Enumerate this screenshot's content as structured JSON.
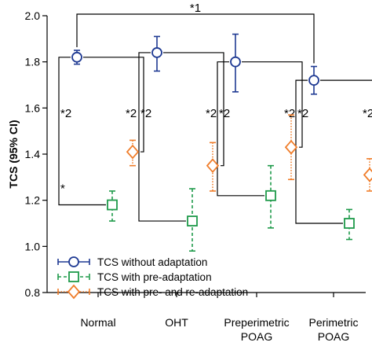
{
  "chart_data": {
    "type": "scatter",
    "ylabel": "TCS (95% CI)",
    "xlabel": "",
    "ylim": [
      0.8,
      2.0
    ],
    "yticks": [
      0.8,
      1.0,
      1.2,
      1.4,
      1.6,
      1.8,
      2.0
    ],
    "categories": [
      {
        "line1": "Normal",
        "line2": ""
      },
      {
        "line1": "OHT",
        "line2": ""
      },
      {
        "line1": "Preperimetric",
        "line2": "POAG"
      },
      {
        "line1": "Perimetric",
        "line2": "POAG"
      }
    ],
    "series": [
      {
        "name": "TCS without adaptation",
        "color": "#1f3a93",
        "marker": "circle",
        "line": "solid",
        "values": [
          1.82,
          1.84,
          1.8,
          1.72
        ],
        "ci_low": [
          1.79,
          1.76,
          1.67,
          1.66
        ],
        "ci_high": [
          1.85,
          1.91,
          1.92,
          1.78
        ]
      },
      {
        "name": "TCS with pre-adaptation",
        "color": "#1e9a4a",
        "marker": "square",
        "line": "dashed",
        "values": [
          1.18,
          1.11,
          1.22,
          1.1
        ],
        "ci_low": [
          1.11,
          0.98,
          1.08,
          1.03
        ],
        "ci_high": [
          1.24,
          1.25,
          1.35,
          1.16
        ]
      },
      {
        "name": "TCS with pre- and re-adaptation",
        "color": "#f07d2a",
        "marker": "diamond",
        "line": "dotted",
        "values": [
          1.41,
          1.35,
          1.43,
          1.31
        ],
        "ci_low": [
          1.35,
          1.24,
          1.29,
          1.24
        ],
        "ci_high": [
          1.46,
          1.45,
          1.57,
          1.38
        ]
      }
    ],
    "annotations": {
      "top": "*1",
      "pairwise": "*2",
      "single": "*"
    },
    "legend_position": "bottom-left"
  }
}
